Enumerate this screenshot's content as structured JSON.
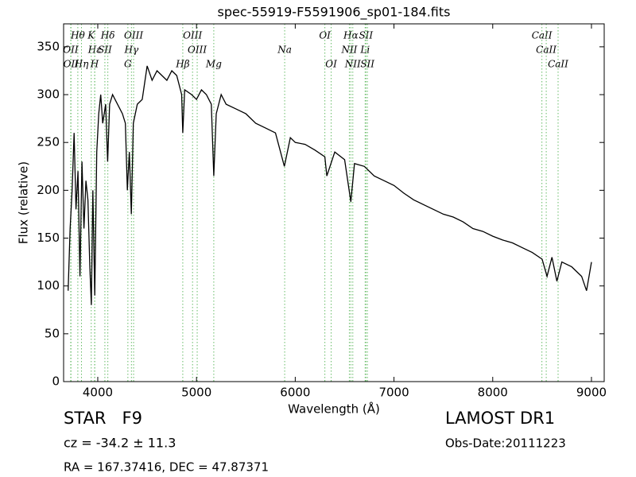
{
  "chart_data": {
    "type": "line",
    "title": "spec-55919-F5591906_sp01-184.fits",
    "xlabel": "Wavelength (Å)",
    "ylabel": "Flux (relative)",
    "xlim": [
      3654,
      9129
    ],
    "ylim": [
      0,
      374
    ],
    "xticks": [
      4000,
      5000,
      6000,
      7000,
      8000,
      9000
    ],
    "yticks": [
      0,
      50,
      100,
      150,
      200,
      250,
      300,
      350
    ],
    "color": "#000000",
    "line_color": "#66bb66",
    "x": [
      3700,
      3720,
      3740,
      3760,
      3780,
      3800,
      3820,
      3840,
      3860,
      3880,
      3900,
      3920,
      3935,
      3950,
      3970,
      3990,
      4010,
      4030,
      4050,
      4080,
      4100,
      4120,
      4150,
      4200,
      4250,
      4280,
      4300,
      4320,
      4340,
      4360,
      4400,
      4450,
      4500,
      4550,
      4600,
      4650,
      4700,
      4750,
      4800,
      4850,
      4861,
      4880,
      4950,
      5000,
      5050,
      5100,
      5150,
      5175,
      5200,
      5250,
      5300,
      5400,
      5500,
      5600,
      5700,
      5800,
      5890,
      5950,
      6000,
      6100,
      6200,
      6300,
      6320,
      6400,
      6500,
      6563,
      6600,
      6700,
      6800,
      6900,
      7000,
      7100,
      7200,
      7300,
      7400,
      7500,
      7600,
      7700,
      7800,
      7900,
      8000,
      8100,
      8200,
      8300,
      8400,
      8500,
      8550,
      8600,
      8650,
      8700,
      8800,
      8900,
      8950,
      9000
    ],
    "values": [
      95,
      160,
      200,
      260,
      180,
      220,
      110,
      230,
      160,
      210,
      190,
      120,
      80,
      200,
      90,
      240,
      280,
      300,
      270,
      290,
      230,
      290,
      300,
      290,
      280,
      270,
      200,
      240,
      175,
      270,
      290,
      295,
      330,
      315,
      325,
      320,
      315,
      325,
      320,
      300,
      260,
      305,
      300,
      295,
      305,
      300,
      290,
      215,
      280,
      300,
      290,
      285,
      280,
      270,
      265,
      260,
      225,
      255,
      250,
      248,
      242,
      235,
      215,
      240,
      232,
      188,
      228,
      225,
      215,
      210,
      205,
      197,
      190,
      185,
      180,
      175,
      172,
      167,
      160,
      157,
      152,
      148,
      145,
      140,
      135,
      128,
      110,
      130,
      105,
      125,
      120,
      110,
      95,
      125
    ],
    "spectral_lines": [
      [
        {
          "label": "Hθ",
          "wavelength": 3798
        },
        {
          "label": "K",
          "wavelength": 3934
        },
        {
          "label": "Hδ",
          "wavelength": 4102
        },
        {
          "label": "OIII",
          "wavelength": 4363
        },
        {
          "label": "OIII",
          "wavelength": 4960
        },
        {
          "label": "OI",
          "wavelength": 6300
        },
        {
          "label": "Hα",
          "wavelength": 6563
        },
        {
          "label": "SII",
          "wavelength": 6716
        },
        {
          "label": "CaII",
          "wavelength": 8498
        }
      ],
      [
        {
          "label": "OII",
          "wavelength": 3726
        },
        {
          "label": "Hε",
          "wavelength": 3970
        },
        {
          "label": "SII",
          "wavelength": 4072
        },
        {
          "label": "Hγ",
          "wavelength": 4341
        },
        {
          "label": "OIII",
          "wavelength": 5007
        },
        {
          "label": "Na",
          "wavelength": 5893
        },
        {
          "label": "NII",
          "wavelength": 6548
        },
        {
          "label": "Li",
          "wavelength": 6708
        },
        {
          "label": "CaII",
          "wavelength": 8542
        }
      ],
      [
        {
          "label": "OII",
          "wavelength": 3729
        },
        {
          "label": "Hη",
          "wavelength": 3835
        },
        {
          "label": "H",
          "wavelength": 3968
        },
        {
          "label": "G",
          "wavelength": 4305
        },
        {
          "label": "Hβ",
          "wavelength": 4861
        },
        {
          "label": "Mg",
          "wavelength": 5175
        },
        {
          "label": "OI",
          "wavelength": 6364
        },
        {
          "label": "NII",
          "wavelength": 6583
        },
        {
          "label": "SII",
          "wavelength": 6731
        },
        {
          "label": "CaII",
          "wavelength": 8662
        }
      ]
    ],
    "info": {
      "class": "STAR   F9",
      "cz": "cz = -34.2 ± 11.3",
      "coords": "RA = 167.37416, DEC = 47.87371",
      "survey": "LAMOST DR1",
      "obs_date": "Obs-Date:20111223"
    }
  }
}
